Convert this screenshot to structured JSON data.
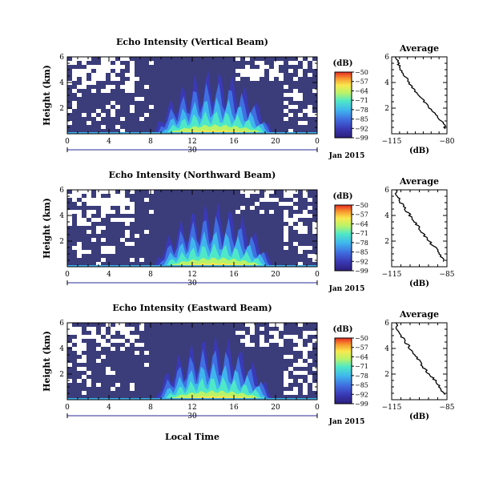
{
  "chart_data": [
    {
      "type": "heatmap",
      "title": "Echo Intensity (Vertical Beam)",
      "ylabel": "Height (km)",
      "xlim": [
        0,
        24
      ],
      "ylim": [
        0,
        6
      ],
      "xticks": [
        "0",
        "4",
        "8",
        "12",
        "16",
        "20",
        "0"
      ],
      "yticks": [
        "2",
        "4",
        "6"
      ],
      "date_tick": "30",
      "date_label": "Jan 2015",
      "colorbar": {
        "unit": "(dB)",
        "ticks": [
          "-50",
          "-57",
          "-64",
          "-71",
          "-78",
          "-85",
          "-92",
          "-99"
        ]
      },
      "profile": {
        "title": "Average",
        "xlabel": "(dB)",
        "xticks": [
          "-115",
          "-80"
        ],
        "xlim": [
          -115,
          -80
        ],
        "yticks": [
          "2",
          "4",
          "6"
        ],
        "x": [
          -112,
          -111,
          -110,
          -108,
          -106,
          -104,
          -102,
          -99,
          -96,
          -94,
          -91,
          -88,
          -85,
          -82,
          -81
        ],
        "y": [
          6.0,
          5.6,
          5.2,
          4.8,
          4.4,
          4.0,
          3.6,
          3.2,
          2.8,
          2.4,
          2.0,
          1.6,
          1.2,
          0.8,
          0.4
        ]
      }
    },
    {
      "type": "heatmap",
      "title": "Echo Intensity (Northward Beam)",
      "ylabel": "Height (km)",
      "xlim": [
        0,
        24
      ],
      "ylim": [
        0,
        6
      ],
      "xticks": [
        "0",
        "4",
        "8",
        "12",
        "16",
        "20",
        "0"
      ],
      "yticks": [
        "2",
        "4",
        "6"
      ],
      "date_tick": "30",
      "date_label": "Jan 2015",
      "colorbar": {
        "unit": "(dB)",
        "ticks": [
          "-50",
          "-57",
          "-64",
          "-71",
          "-78",
          "-85",
          "-92",
          "-99"
        ]
      },
      "profile": {
        "title": "Average",
        "xlabel": "(dB)",
        "xticks": [
          "-115",
          "-85"
        ],
        "xlim": [
          -115,
          -85
        ],
        "yticks": [
          "2",
          "4",
          "6"
        ],
        "x": [
          -113,
          -112,
          -111,
          -109,
          -107,
          -105,
          -103,
          -101,
          -99,
          -97,
          -95,
          -92,
          -90,
          -88,
          -87
        ],
        "y": [
          6.0,
          5.6,
          5.2,
          4.8,
          4.4,
          4.0,
          3.6,
          3.2,
          2.8,
          2.4,
          2.0,
          1.6,
          1.2,
          0.8,
          0.4
        ]
      }
    },
    {
      "type": "heatmap",
      "title": "Echo Intensity (Eastward Beam)",
      "ylabel": "Height (km)",
      "xlim": [
        0,
        24
      ],
      "ylim": [
        0,
        6
      ],
      "xticks": [
        "0",
        "4",
        "8",
        "12",
        "16",
        "20",
        "0"
      ],
      "yticks": [
        "2",
        "4",
        "6"
      ],
      "date_tick": "30",
      "date_label": "Jan 2015",
      "colorbar": {
        "unit": "(dB)",
        "ticks": [
          "-50",
          "-57",
          "-64",
          "-71",
          "-78",
          "-85",
          "-92",
          "-99"
        ]
      },
      "profile": {
        "title": "Average",
        "xlabel": "(dB)",
        "xticks": [
          "-115",
          "-85"
        ],
        "xlim": [
          -115,
          -85
        ],
        "yticks": [
          "2",
          "4",
          "6"
        ],
        "x": [
          -113,
          -112,
          -111,
          -109,
          -107,
          -105,
          -103,
          -101,
          -99,
          -97,
          -95,
          -92,
          -90,
          -88,
          -86
        ],
        "y": [
          6.0,
          5.6,
          5.2,
          4.8,
          4.4,
          4.0,
          3.6,
          3.2,
          2.8,
          2.4,
          2.0,
          1.6,
          1.2,
          0.8,
          0.4
        ]
      }
    }
  ],
  "xlabel": "Local Time"
}
